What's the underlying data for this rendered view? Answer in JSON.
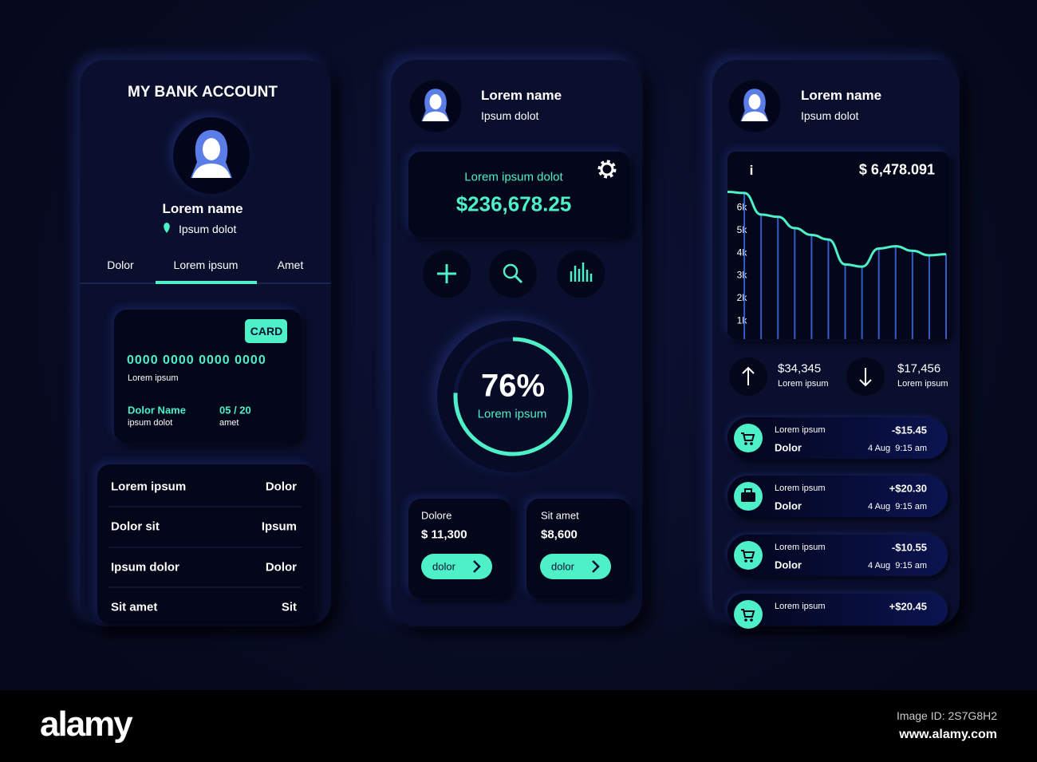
{
  "screen1": {
    "title": "MY BANK ACCOUNT",
    "profile": {
      "name": "Lorem name",
      "location": "Ipsum dolot"
    },
    "tabs": [
      "Dolor",
      "Lorem ipsum",
      "Amet"
    ],
    "card": {
      "badge": "CARD",
      "number": "0000 0000 0000 0000",
      "number_caption": "Lorem ipsum",
      "holder": "Dolor Name",
      "holder_caption": "ipsum dolot",
      "expiry": "05 / 20",
      "expiry_caption": "amet"
    },
    "rows": [
      [
        "Lorem ipsum",
        "Dolor"
      ],
      [
        "Dolor sit",
        "Ipsum"
      ],
      [
        "Ipsum dolor",
        "Dolor"
      ],
      [
        "Sit amet",
        "Sit"
      ]
    ]
  },
  "screen2": {
    "profile": {
      "name": "Lorem name",
      "subtitle": "Ipsum dolot"
    },
    "balance": {
      "label": "Lorem ipsum dolot",
      "amount": "$236,678.25"
    },
    "progress": {
      "value": 76,
      "label": "76%",
      "caption": "Lorem ipsum"
    },
    "tiles": [
      {
        "title": "Dolore",
        "amount": "$ 11,300",
        "button": "dolor"
      },
      {
        "title": "Sit amet",
        "amount": "$8,600",
        "button": "dolor"
      }
    ]
  },
  "screen3": {
    "profile": {
      "name": "Lorem name",
      "subtitle": "Ipsum dolot"
    },
    "chart": {
      "type": "line",
      "info": "i",
      "total": "$ 6,478.091",
      "values": [
        6700,
        6650,
        5700,
        5600,
        5100,
        4800,
        4600,
        3500,
        3400,
        4200,
        4300,
        4100,
        3900,
        3950
      ],
      "color": "#4ef0c8",
      "ylim": [
        200,
        7000
      ],
      "yticks": [
        {
          "value": 1000,
          "label": "1k"
        },
        {
          "value": 2000,
          "label": "2k"
        },
        {
          "value": 3000,
          "label": "3k"
        },
        {
          "value": 4000,
          "label": "4k"
        },
        {
          "value": 5000,
          "label": "5k"
        },
        {
          "value": 6000,
          "label": "6k"
        }
      ]
    },
    "stats": [
      {
        "amount": "$34,345",
        "caption": "Lorem ipsum"
      },
      {
        "amount": "$17,456",
        "caption": "Lorem ipsum"
      }
    ],
    "transactions": [
      {
        "title": "Lorem ipsum",
        "category": "Dolor",
        "amount": "-$15.45",
        "date": "4 Aug  9:15 am"
      },
      {
        "title": "Lorem ipsum",
        "category": "Dolor",
        "amount": "+$20.30",
        "date": "4 Aug  9:15 am"
      },
      {
        "title": "Lorem ipsum",
        "category": "Dolor",
        "amount": "-$10.55",
        "date": "4 Aug  9:15 am"
      },
      {
        "title": "Lorem ipsum",
        "amount": "+$20.45"
      }
    ]
  },
  "watermark": {
    "logo": "alamy",
    "image_id": "Image ID: 2S7G8H2",
    "site": "www.alamy.com"
  }
}
